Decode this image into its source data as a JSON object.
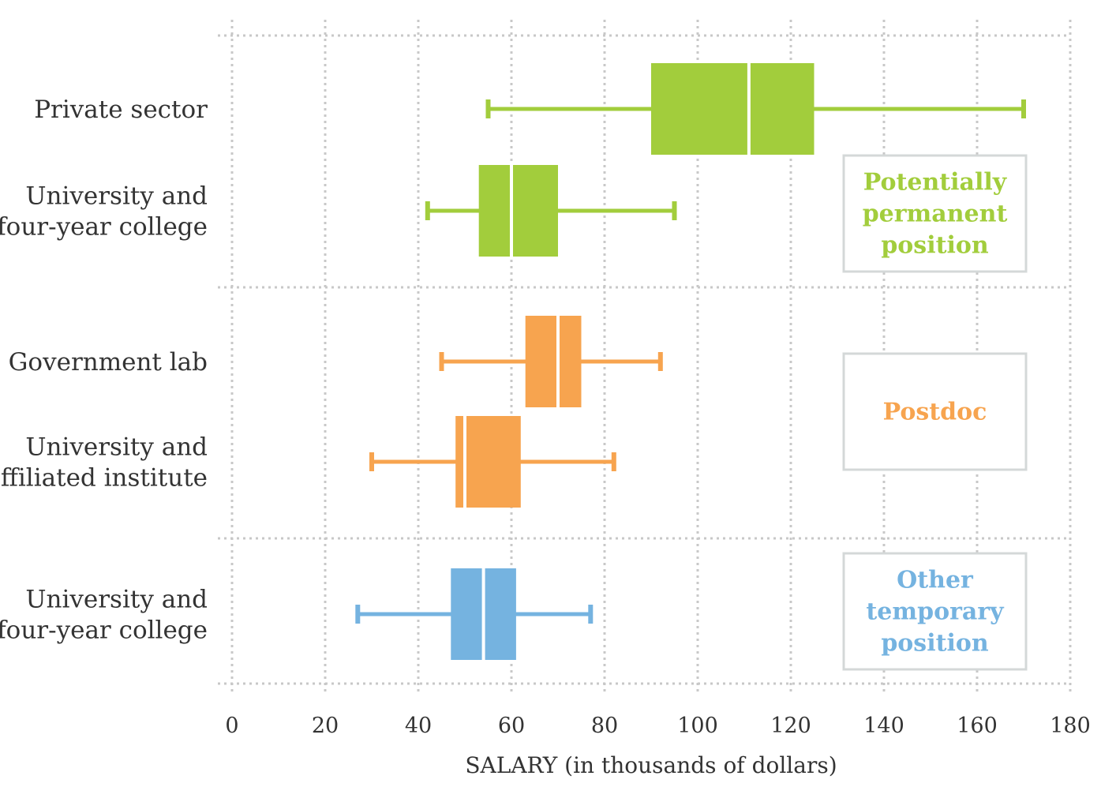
{
  "chart_data": {
    "type": "boxplot",
    "xlabel": "SALARY (in thousands of dollars)",
    "xlim": [
      0,
      180
    ],
    "xticks": [
      0,
      20,
      40,
      60,
      80,
      100,
      120,
      140,
      160,
      180
    ],
    "grid": true,
    "groups": [
      {
        "name": "Potentially permanent position",
        "legend_lines": [
          "Potentially",
          "permanent",
          "position"
        ],
        "color": "#a2cd3c",
        "series": [
          {
            "label_lines": [
              "Private sector"
            ],
            "min": 55,
            "q1": 90,
            "median": 111,
            "q3": 125,
            "max": 170
          },
          {
            "label_lines": [
              "University and",
              "four-year college"
            ],
            "min": 42,
            "q1": 53,
            "median": 60,
            "q3": 70,
            "max": 95
          }
        ]
      },
      {
        "name": "Postdoc",
        "legend_lines": [
          "Postdoc"
        ],
        "color": "#f7a44f",
        "series": [
          {
            "label_lines": [
              "Government lab"
            ],
            "min": 45,
            "q1": 63,
            "median": 70,
            "q3": 75,
            "max": 92
          },
          {
            "label_lines": [
              "University and",
              "affiliated institute"
            ],
            "min": 30,
            "q1": 48,
            "median": 50,
            "q3": 62,
            "max": 82
          }
        ]
      },
      {
        "name": "Other temporary position",
        "legend_lines": [
          "Other",
          "temporary",
          "position"
        ],
        "color": "#75b3e0",
        "series": [
          {
            "label_lines": [
              "University and",
              "four-year college"
            ],
            "min": 27,
            "q1": 47,
            "median": 54,
            "q3": 61,
            "max": 77
          }
        ]
      }
    ]
  }
}
